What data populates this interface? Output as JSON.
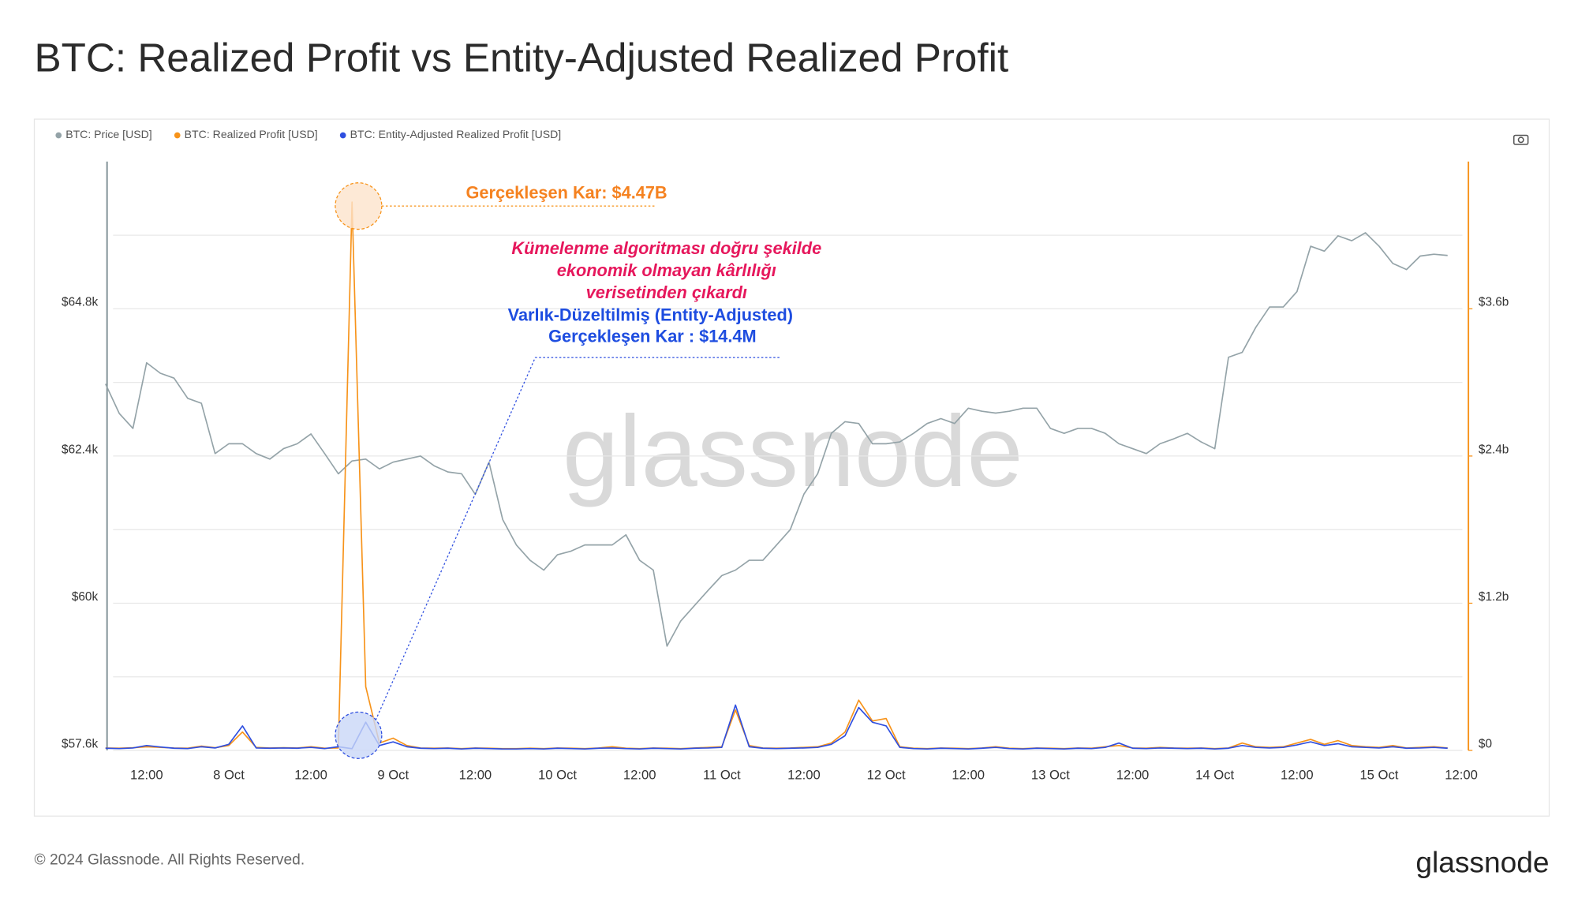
{
  "chart_data": {
    "type": "line",
    "title": "BTC: Realized Profit vs Entity-Adjusted Realized Profit",
    "categories": [
      null,
      null,
      null,
      "12:00",
      null,
      null,
      null,
      null,
      null,
      "8 Oct",
      null,
      null,
      null,
      null,
      null,
      "12:00",
      null,
      null,
      null,
      null,
      null,
      "9 Oct",
      null,
      null,
      null,
      null,
      null,
      "12:00",
      null,
      null,
      null,
      null,
      null,
      "10 Oct",
      null,
      null,
      null,
      null,
      null,
      "12:00",
      null,
      null,
      null,
      null,
      null,
      "11 Oct",
      null,
      null,
      null,
      null,
      null,
      "12:00",
      null,
      null,
      null,
      null,
      null,
      "12 Oct",
      null,
      null,
      null,
      null,
      null,
      "12:00",
      null,
      null,
      null,
      null,
      null,
      "13 Oct",
      null,
      null,
      null,
      null,
      null,
      "12:00",
      null,
      null,
      null,
      null,
      null,
      "14 Oct",
      null,
      null,
      null,
      null,
      null,
      "12:00",
      null,
      null,
      null,
      null,
      null,
      "15 Oct",
      null,
      null,
      null,
      null,
      null,
      "12:00"
    ],
    "series": [
      {
        "name": "BTC: Price [USD]",
        "color": "#94a3a8",
        "axis": "y",
        "values": [
          63575,
          63095,
          62850,
          63920,
          63750,
          63670,
          63340,
          63260,
          62440,
          62600,
          62600,
          62440,
          62350,
          62520,
          62600,
          62760,
          62440,
          62110,
          62320,
          62350,
          62190,
          62300,
          62350,
          62400,
          62240,
          62140,
          62110,
          61775,
          62300,
          61365,
          60950,
          60700,
          60540,
          60790,
          60850,
          60950,
          60950,
          60950,
          61115,
          60700,
          60540,
          59300,
          59710,
          59960,
          60210,
          60450,
          60540,
          60700,
          60700,
          60950,
          61200,
          61780,
          62110,
          62770,
          62960,
          62930,
          62600,
          62600,
          62630,
          62770,
          62930,
          63010,
          62930,
          63180,
          63130,
          63100,
          63130,
          63180,
          63180,
          62850,
          62770,
          62850,
          62850,
          62770,
          62600,
          62520,
          62440,
          62600,
          62680,
          62770,
          62630,
          62520,
          64010,
          64090,
          64500,
          64830,
          64830,
          65080,
          65820,
          65740,
          65990,
          65910,
          66040,
          65820,
          65540,
          65440,
          65660,
          65690,
          65670,
          null
        ]
      },
      {
        "name": "BTC: Realized Profit [USD]",
        "color": "#f7931a",
        "axis": "y2",
        "values": [
          20000000,
          18000000,
          22000000,
          30000000,
          25000000,
          20000000,
          18000000,
          35000000,
          22000000,
          40000000,
          150000000,
          25000000,
          20000000,
          22000000,
          20000000,
          30000000,
          18000000,
          20000000,
          4470000000,
          520000000,
          60000000,
          100000000,
          40000000,
          20000000,
          18000000,
          20000000,
          15000000,
          20000000,
          18000000,
          15000000,
          15000000,
          18000000,
          15000000,
          20000000,
          18000000,
          15000000,
          20000000,
          30000000,
          18000000,
          15000000,
          20000000,
          18000000,
          15000000,
          20000000,
          25000000,
          30000000,
          330000000,
          40000000,
          20000000,
          18000000,
          20000000,
          25000000,
          30000000,
          60000000,
          150000000,
          410000000,
          240000000,
          260000000,
          30000000,
          18000000,
          15000000,
          20000000,
          18000000,
          15000000,
          20000000,
          30000000,
          18000000,
          15000000,
          20000000,
          18000000,
          15000000,
          20000000,
          18000000,
          30000000,
          40000000,
          20000000,
          18000000,
          25000000,
          20000000,
          18000000,
          20000000,
          15000000,
          20000000,
          60000000,
          30000000,
          25000000,
          30000000,
          60000000,
          90000000,
          50000000,
          80000000,
          40000000,
          30000000,
          25000000,
          40000000,
          20000000,
          25000000,
          30000000,
          20000000,
          null
        ]
      },
      {
        "name": "BTC: Entity-Adjusted Realized Profit [USD]",
        "color": "#2f4fe0",
        "axis": "y2",
        "values": [
          18000000,
          15000000,
          20000000,
          40000000,
          28000000,
          18000000,
          15000000,
          30000000,
          20000000,
          50000000,
          200000000,
          20000000,
          18000000,
          20000000,
          18000000,
          25000000,
          15000000,
          30000000,
          14400000,
          230000000,
          40000000,
          70000000,
          30000000,
          18000000,
          15000000,
          18000000,
          12000000,
          18000000,
          15000000,
          12000000,
          12000000,
          15000000,
          12000000,
          18000000,
          15000000,
          12000000,
          18000000,
          20000000,
          15000000,
          12000000,
          18000000,
          15000000,
          12000000,
          18000000,
          20000000,
          25000000,
          370000000,
          30000000,
          18000000,
          15000000,
          18000000,
          20000000,
          25000000,
          50000000,
          120000000,
          350000000,
          230000000,
          200000000,
          25000000,
          15000000,
          12000000,
          18000000,
          15000000,
          12000000,
          18000000,
          25000000,
          15000000,
          12000000,
          18000000,
          15000000,
          12000000,
          18000000,
          15000000,
          25000000,
          60000000,
          18000000,
          15000000,
          20000000,
          18000000,
          15000000,
          18000000,
          12000000,
          18000000,
          40000000,
          25000000,
          20000000,
          25000000,
          45000000,
          70000000,
          40000000,
          55000000,
          30000000,
          25000000,
          20000000,
          30000000,
          18000000,
          20000000,
          25000000,
          18000000,
          null
        ]
      }
    ],
    "ylim": [
      57600,
      67200
    ],
    "yticks": [
      {
        "value": 57600,
        "label": "$57.6k"
      },
      {
        "value": 60000,
        "label": "$60k"
      },
      {
        "value": 62400,
        "label": "$62.4k"
      },
      {
        "value": 64800,
        "label": "$64.8k"
      }
    ],
    "ygrid": [
      58800,
      61200,
      63600,
      66000
    ],
    "y2lim": [
      0,
      4800000000
    ],
    "y2ticks": [
      {
        "value": 0,
        "label": "$0"
      },
      {
        "value": 1200000000,
        "label": "$1.2b"
      },
      {
        "value": 2400000000,
        "label": "$2.4b"
      },
      {
        "value": 3600000000,
        "label": "$3.6b"
      }
    ],
    "grid": true,
    "legend": "top-left",
    "annotations": [
      "Gerçekleşen Kar: $4.47B",
      "Kümelenme algoritması  doğru şekilde",
      "ekonomik olmayan kârlılığı",
      "verisetinden çıkardı",
      "Varlık-Düzeltilmiş (Entity-Adjusted)",
      "Gerçekleşen Kar : $14.4M"
    ],
    "watermark": "glassnode"
  },
  "footer": {
    "copyright": "© 2024 Glassnode. All Rights Reserved.",
    "logo": "glassnode"
  }
}
